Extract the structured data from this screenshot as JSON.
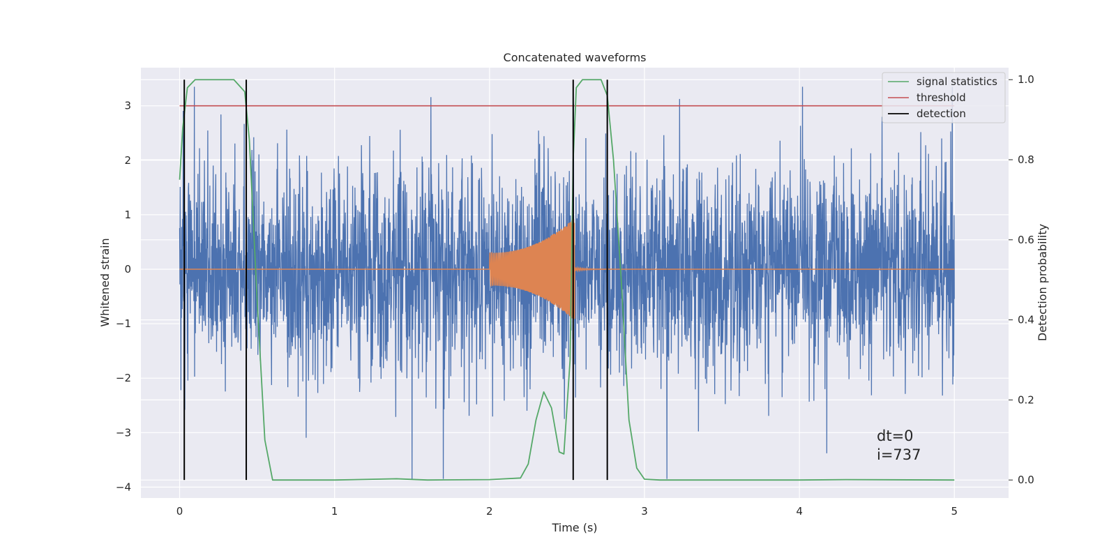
{
  "chart_data": {
    "type": "line",
    "title": "Concatenated waveforms",
    "xlabel": "Time (s)",
    "ylabel": "Whitened strain",
    "y2label": "Detection probability",
    "xlim": [
      -0.25,
      5.35
    ],
    "ylim": [
      -4.2,
      3.7
    ],
    "y2lim": [
      -0.045,
      1.03
    ],
    "xticks": [
      0,
      1,
      2,
      3,
      4,
      5
    ],
    "xtick_labels": [
      "0",
      "1",
      "2",
      "3",
      "4",
      "5"
    ],
    "yticks": [
      3,
      2,
      1,
      0,
      -1,
      -2,
      -3,
      -4
    ],
    "ytick_labels": [
      "3",
      "2",
      "1",
      "0",
      "−1",
      "−2",
      "−3",
      "−4"
    ],
    "y2ticks": [
      1.0,
      0.8,
      0.6,
      0.4,
      0.2,
      0.0
    ],
    "y2tick_labels": [
      "1.0",
      "0.8",
      "0.6",
      "0.4",
      "0.2",
      "0.0"
    ],
    "grid": true,
    "legend_position": "top-right",
    "legend": [
      {
        "label": "signal statistics",
        "color": "#55a868"
      },
      {
        "label": "threshold",
        "color": "#c44e52"
      },
      {
        "label": "detection",
        "color": "#000000"
      }
    ],
    "colors": {
      "strain": "#4c72b0",
      "injection": "#dd8452",
      "signal": "#55a868",
      "threshold": "#c44e52",
      "detection": "#000000",
      "background": "#eaeaf2",
      "grid": "#ffffff"
    },
    "strain_series": {
      "name": "",
      "t_range": [
        0,
        5
      ],
      "typical_amplitude": [
        -2.5,
        2.5
      ],
      "peak_max": 3.35,
      "peak_min": -3.85
    },
    "injection_series": {
      "name": "",
      "start": 2.0,
      "merger": 2.55,
      "ringdown_end": 3.0,
      "amplitude_start": 0.3,
      "amplitude_merger": 0.95
    },
    "threshold": {
      "value": 3.0,
      "x_range": [
        0,
        5
      ]
    },
    "detections": [
      0.03,
      0.43,
      2.54,
      2.76
    ],
    "signal_statistics": [
      [
        0.0,
        0.75
      ],
      [
        0.02,
        0.88
      ],
      [
        0.05,
        0.98
      ],
      [
        0.1,
        1.0
      ],
      [
        0.35,
        1.0
      ],
      [
        0.42,
        0.97
      ],
      [
        0.45,
        0.85
      ],
      [
        0.5,
        0.45
      ],
      [
        0.55,
        0.1
      ],
      [
        0.6,
        0.0
      ],
      [
        1.0,
        0.0
      ],
      [
        1.4,
        0.003
      ],
      [
        1.6,
        0.0
      ],
      [
        2.0,
        0.001
      ],
      [
        2.2,
        0.005
      ],
      [
        2.25,
        0.04
      ],
      [
        2.3,
        0.15
      ],
      [
        2.35,
        0.22
      ],
      [
        2.4,
        0.18
      ],
      [
        2.45,
        0.07
      ],
      [
        2.48,
        0.065
      ],
      [
        2.52,
        0.3
      ],
      [
        2.54,
        0.8
      ],
      [
        2.56,
        0.98
      ],
      [
        2.6,
        1.0
      ],
      [
        2.72,
        1.0
      ],
      [
        2.76,
        0.96
      ],
      [
        2.8,
        0.8
      ],
      [
        2.85,
        0.5
      ],
      [
        2.9,
        0.15
      ],
      [
        2.95,
        0.03
      ],
      [
        3.0,
        0.002
      ],
      [
        3.1,
        0.0
      ],
      [
        4.0,
        0.0
      ],
      [
        4.3,
        0.001
      ],
      [
        5.0,
        0.0
      ]
    ],
    "annotations": [
      "dt=0",
      "i=737"
    ]
  }
}
